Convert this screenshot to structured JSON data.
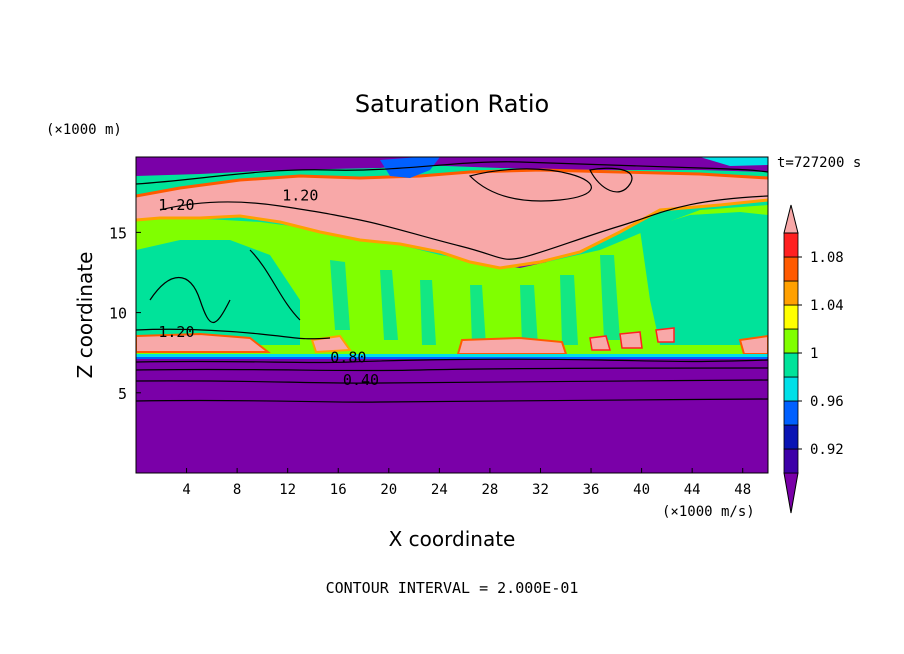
{
  "chart_data": {
    "type": "heatmap",
    "title": "Saturation Ratio",
    "xlabel": "X coordinate",
    "ylabel": "Z coordinate",
    "x_unit": "(×1000 m/s)",
    "y_unit": "(×1000 m)",
    "time_label": "t=727200 s",
    "footer": "CONTOUR INTERVAL = 2.000E-01",
    "xlim": [
      0,
      50
    ],
    "ylim": [
      0,
      19.7
    ],
    "x_ticks": [
      "4",
      "8",
      "12",
      "16",
      "20",
      "24",
      "28",
      "32",
      "36",
      "40",
      "44",
      "48"
    ],
    "y_ticks": [
      "5",
      "10",
      "15"
    ],
    "contour_labels": [
      {
        "text": "1.20",
        "x": 3.2,
        "z": 16.7
      },
      {
        "text": "1.20",
        "x": 13.0,
        "z": 17.3
      },
      {
        "text": "1.20",
        "x": 3.2,
        "z": 8.8
      },
      {
        "text": "0.80",
        "x": 16.8,
        "z": 7.2
      },
      {
        "text": "0.40",
        "x": 17.8,
        "z": 5.8
      }
    ],
    "colorbar": {
      "colors": [
        "#7a00a8",
        "#3d00a8",
        "#0a14b4",
        "#0060ff",
        "#00e0e8",
        "#00e39a",
        "#80ff00",
        "#ffff00",
        "#ffa000",
        "#ff5a00",
        "#ff2020",
        "#f8a8a8"
      ],
      "levels": [
        0.9,
        0.92,
        0.94,
        0.96,
        0.98,
        1,
        1.02,
        1.04,
        1.06,
        1.08,
        1.1
      ],
      "tick_labels": [
        "0.92",
        "0.96",
        "1",
        "1.04",
        "1.08"
      ],
      "extend": "both"
    }
  }
}
